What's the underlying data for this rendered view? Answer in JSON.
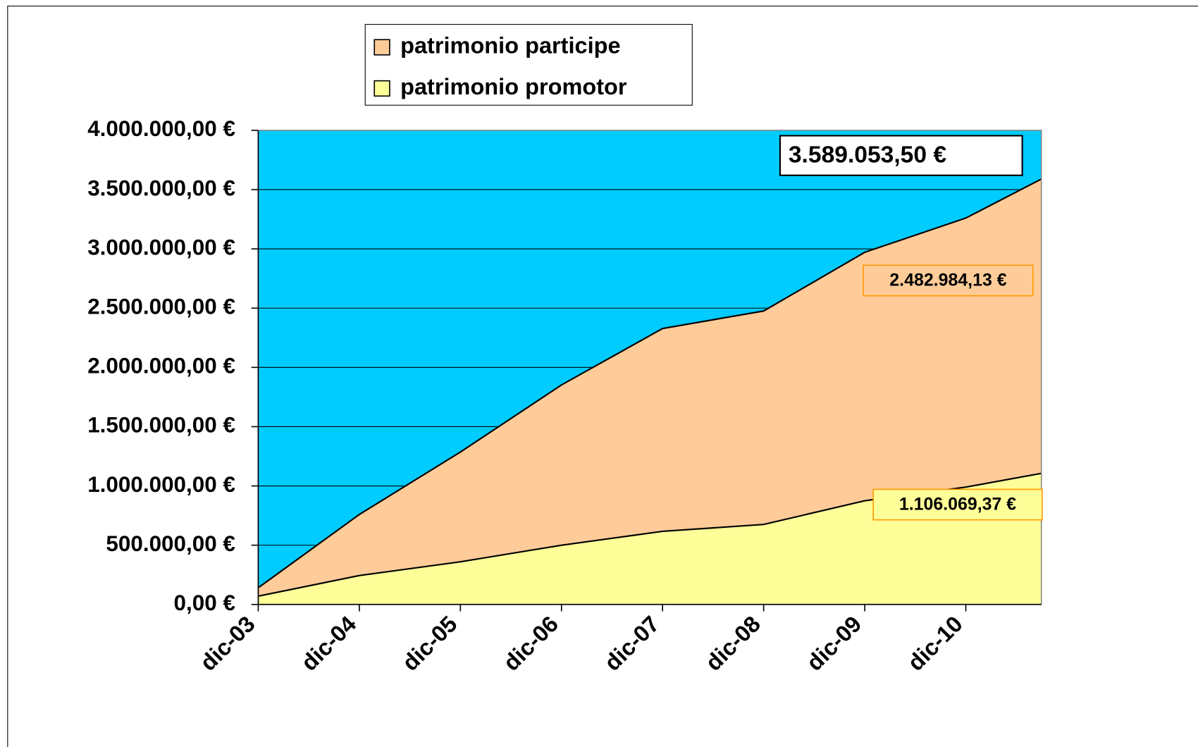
{
  "chart_data": {
    "type": "stacked-area",
    "categories": [
      "dic-03",
      "dic-04",
      "dic-05",
      "dic-06",
      "dic-07",
      "dic-08",
      "dic-09",
      "dic-10",
      null
    ],
    "series": [
      {
        "name": "patrimonio participe",
        "color": "#ffcc99",
        "values": [
          71000,
          515000,
          926000,
          1352000,
          1711000,
          1801000,
          2096000,
          2270000,
          2482984.13
        ],
        "value_labels": [
          null,
          null,
          null,
          null,
          null,
          null,
          null,
          null,
          "2.482.984,13 €"
        ]
      },
      {
        "name": "patrimonio promotor",
        "color": "#ffff99",
        "values": [
          70000,
          244000,
          360000,
          500000,
          617000,
          675000,
          875000,
          990000,
          1106069.37
        ],
        "value_labels": [
          null,
          null,
          null,
          null,
          null,
          null,
          null,
          null,
          "1.106.069,37 €"
        ]
      }
    ],
    "annotations": [
      {
        "text": "3.589.053,50 €",
        "value": 3589053.5
      }
    ],
    "ylim": [
      0,
      4000000
    ],
    "yticks": [
      {
        "value": 0,
        "label": "0,00 €"
      },
      {
        "value": 500000,
        "label": "500.000,00 €"
      },
      {
        "value": 1000000,
        "label": "1.000.000,00 €"
      },
      {
        "value": 1500000,
        "label": "1.500.000,00 €"
      },
      {
        "value": 2000000,
        "label": "2.000.000,00 €"
      },
      {
        "value": 2500000,
        "label": "2.500.000,00 €"
      },
      {
        "value": 3000000,
        "label": "3.000.000,00 €"
      },
      {
        "value": 3500000,
        "label": "3.500.000,00 €"
      },
      {
        "value": 4000000,
        "label": "4.000.000,00 €"
      }
    ],
    "grid": true,
    "plot_background": "#00ccff",
    "legend": "top"
  }
}
